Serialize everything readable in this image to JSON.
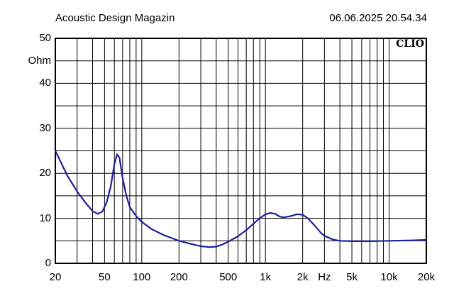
{
  "header": {
    "left_title": "Acoustic Design Magazin",
    "right_timestamp": "06.06.2025 20.54.34"
  },
  "brand": "CLIO",
  "colors": {
    "curve": "#1f1f9a",
    "grid": "#000000",
    "background": "#ffffff"
  },
  "chart_data": {
    "type": "line",
    "title": "",
    "xscale": "log",
    "xlim": [
      20,
      20000
    ],
    "ylim": [
      0,
      50
    ],
    "y_unit_label": "Ohm",
    "x_unit_label": "Hz",
    "y_ticks": [
      {
        "value": 0,
        "label": "0"
      },
      {
        "value": 10,
        "label": "10"
      },
      {
        "value": 20,
        "label": "20"
      },
      {
        "value": 30,
        "label": "30"
      },
      {
        "value": 40,
        "label": "40"
      },
      {
        "value": 50,
        "label": "50"
      }
    ],
    "x_ticks": [
      {
        "value": 20,
        "label": "20"
      },
      {
        "value": 50,
        "label": "50"
      },
      {
        "value": 100,
        "label": "100"
      },
      {
        "value": 200,
        "label": "200"
      },
      {
        "value": 500,
        "label": "500"
      },
      {
        "value": 1000,
        "label": "1k"
      },
      {
        "value": 2000,
        "label": "2k"
      },
      {
        "value": 5000,
        "label": "5k"
      },
      {
        "value": 10000,
        "label": "10k"
      },
      {
        "value": 20000,
        "label": "20k"
      }
    ],
    "grid": true,
    "series": [
      {
        "points": [
          [
            20,
            25.0
          ],
          [
            25,
            19.5
          ],
          [
            30,
            16.0
          ],
          [
            35,
            13.5
          ],
          [
            40,
            11.6
          ],
          [
            44,
            11.0
          ],
          [
            48,
            11.5
          ],
          [
            52,
            13.5
          ],
          [
            56,
            17.0
          ],
          [
            60,
            22.0
          ],
          [
            63,
            24.2
          ],
          [
            66,
            23.5
          ],
          [
            70,
            19.0
          ],
          [
            75,
            15.0
          ],
          [
            80,
            12.5
          ],
          [
            90,
            10.5
          ],
          [
            100,
            9.2
          ],
          [
            120,
            7.6
          ],
          [
            150,
            6.3
          ],
          [
            200,
            5.0
          ],
          [
            250,
            4.3
          ],
          [
            300,
            3.8
          ],
          [
            350,
            3.6
          ],
          [
            400,
            3.7
          ],
          [
            450,
            4.2
          ],
          [
            500,
            4.8
          ],
          [
            600,
            6.0
          ],
          [
            700,
            7.4
          ],
          [
            800,
            8.8
          ],
          [
            900,
            10.0
          ],
          [
            1000,
            10.9
          ],
          [
            1100,
            11.2
          ],
          [
            1200,
            11.0
          ],
          [
            1300,
            10.4
          ],
          [
            1400,
            10.2
          ],
          [
            1600,
            10.5
          ],
          [
            1800,
            10.9
          ],
          [
            2000,
            10.8
          ],
          [
            2200,
            10.0
          ],
          [
            2500,
            8.4
          ],
          [
            2800,
            6.8
          ],
          [
            3000,
            6.1
          ],
          [
            3500,
            5.3
          ],
          [
            4000,
            5.0
          ],
          [
            5000,
            4.9
          ],
          [
            7000,
            4.9
          ],
          [
            10000,
            5.0
          ],
          [
            15000,
            5.1
          ],
          [
            20000,
            5.2
          ]
        ]
      }
    ]
  }
}
